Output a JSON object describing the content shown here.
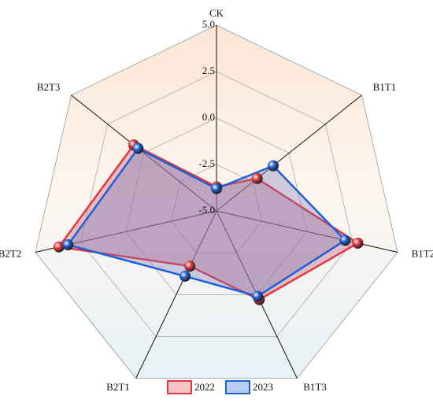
{
  "chart_data": {
    "type": "radar",
    "categories": [
      "CK",
      "B1T1",
      "B1T2",
      "B1T3",
      "B2T1",
      "B2T2",
      "B2T3"
    ],
    "ylim": [
      -5,
      5
    ],
    "yticks": [
      {
        "value": -5,
        "label": "-5.0"
      },
      {
        "value": -2.5,
        "label": "-2.5"
      },
      {
        "value": 0,
        "label": "0.0"
      },
      {
        "value": 2.5,
        "label": "2.5"
      },
      {
        "value": 5,
        "label": "5.0"
      }
    ],
    "grid": true,
    "legend": "bottom",
    "series": [
      {
        "name": "2022",
        "color": "#e5353d",
        "fill": "#f4c3c6",
        "values": [
          -3.7,
          -2.2,
          2.8,
          0.3,
          -1.7,
          3.7,
          0.7
        ]
      },
      {
        "name": "2023",
        "color": "#1f5fd6",
        "fill": "#b9cdf0",
        "values": [
          -3.8,
          -1.1,
          2.1,
          0.1,
          -1.1,
          3.2,
          0.4
        ]
      }
    ]
  }
}
